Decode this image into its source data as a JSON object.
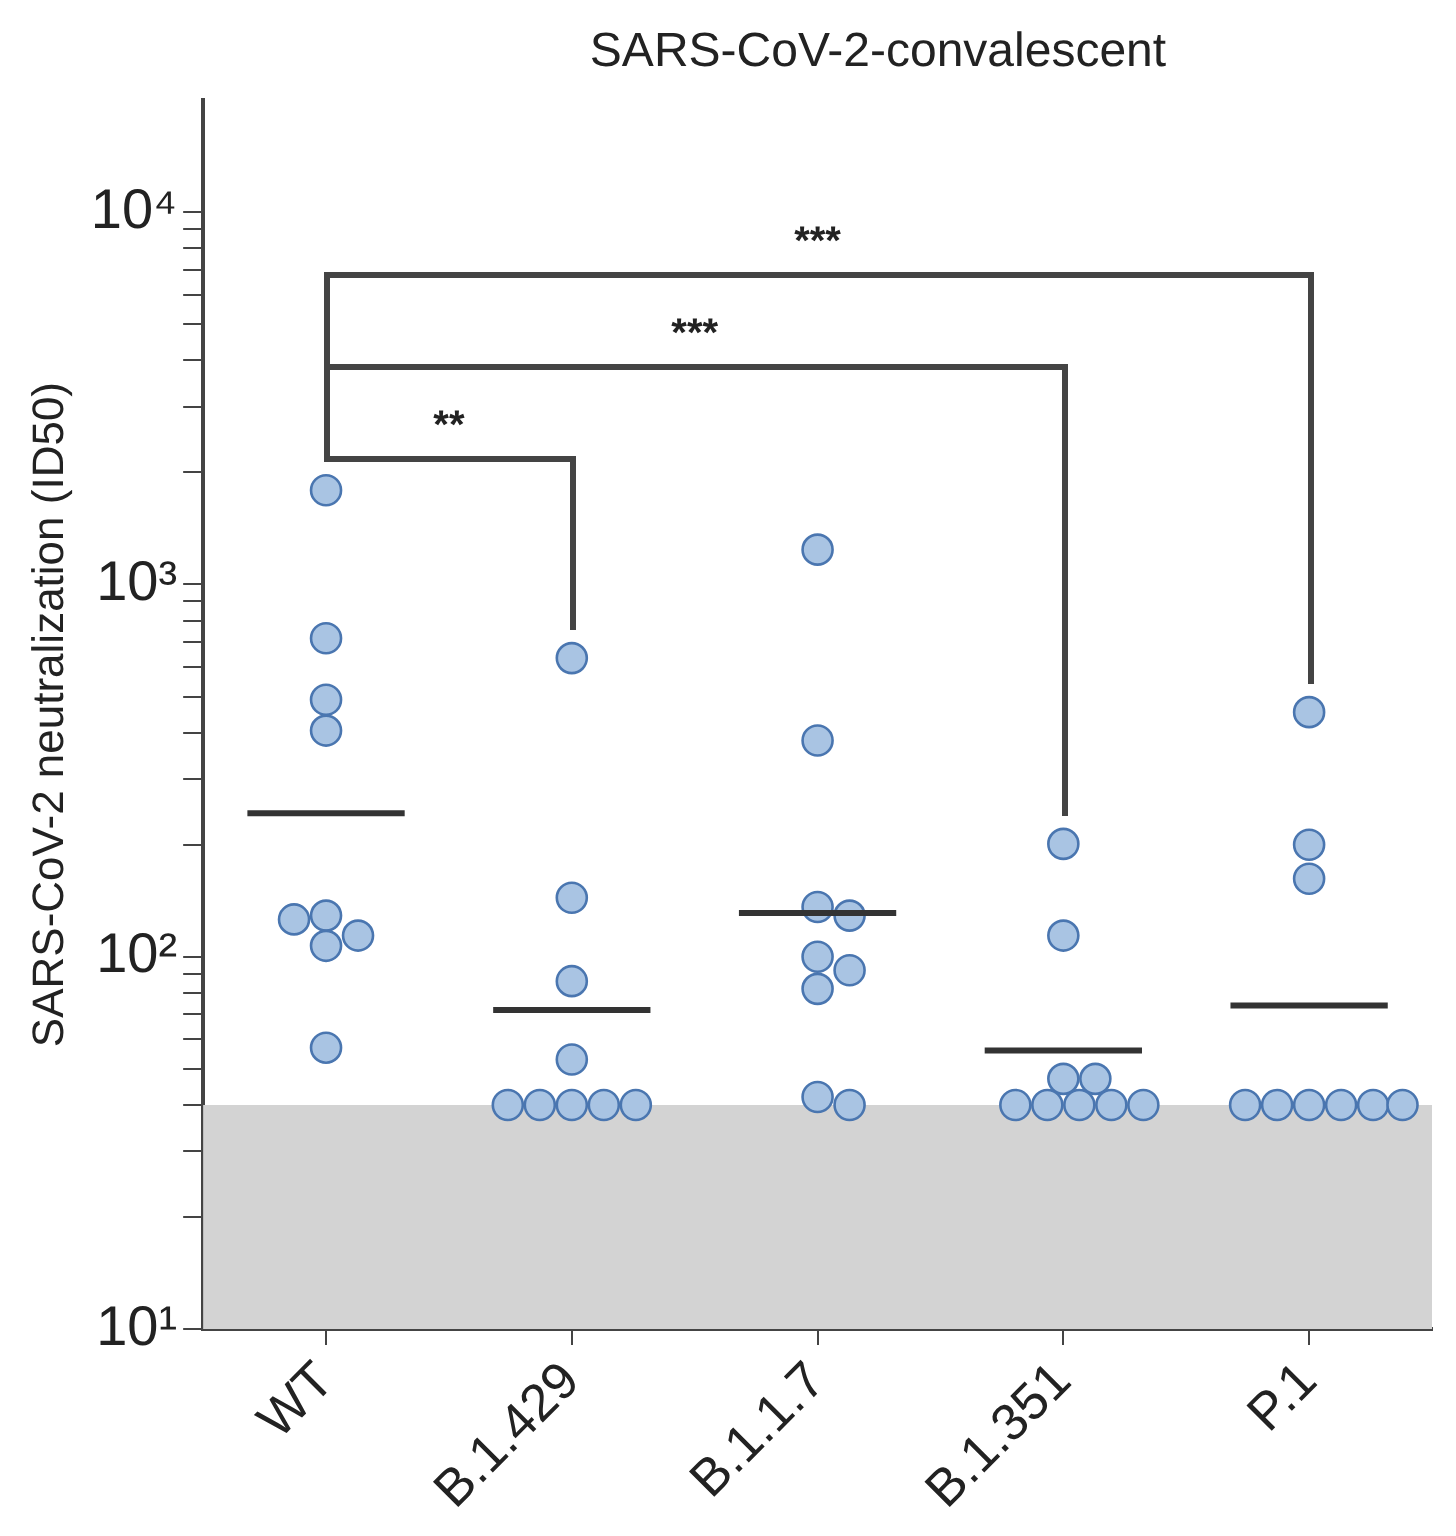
{
  "chart_data": {
    "type": "scatter",
    "title": "SARS-CoV-2-convalescent",
    "ylabel": "SARS-CoV-2 neutralization (ID50)",
    "categories": [
      "WT",
      "B.1.429",
      "B.1.1.7",
      "B.1.351",
      "P.1"
    ],
    "series": [
      {
        "type": "scatter",
        "color": "#a9c4e3",
        "x": [
          "WT",
          "WT",
          "WT",
          "WT",
          "WT",
          "WT",
          "WT",
          "WT",
          "WT",
          "B.1.429",
          "B.1.429",
          "B.1.429",
          "B.1.429",
          "B.1.429",
          "B.1.429",
          "B.1.429",
          "B.1.429",
          "B.1.429",
          "B.1.1.7",
          "B.1.1.7",
          "B.1.1.7",
          "B.1.1.7",
          "B.1.1.7",
          "B.1.1.7",
          "B.1.1.7",
          "B.1.1.7",
          "B.1.1.7",
          "B.1.351",
          "B.1.351",
          "B.1.351",
          "B.1.351",
          "B.1.351",
          "B.1.351",
          "B.1.351",
          "B.1.351",
          "B.1.351",
          "P.1",
          "P.1",
          "P.1",
          "P.1",
          "P.1",
          "P.1",
          "P.1",
          "P.1",
          "P.1"
        ],
        "values": [
          1790,
          717,
          490,
          405,
          129,
          114,
          126,
          107,
          57,
          634,
          144,
          86,
          53,
          40,
          40,
          40,
          40,
          40,
          1240,
          381,
          136,
          129,
          100,
          92,
          82,
          42,
          40,
          201,
          114,
          47,
          47,
          40,
          40,
          40,
          40,
          40,
          454,
          200,
          162,
          40,
          40,
          40,
          40,
          40,
          40
        ]
      },
      {
        "type": "box",
        "color": "#333333",
        "boxes": [
          {
            "low": 243,
            "q1": 243,
            "median": 243,
            "q3": 243,
            "high": 243
          },
          {
            "low": 72,
            "q1": 72,
            "median": 72,
            "q3": 72,
            "high": 72
          },
          {
            "low": 131,
            "q1": 131,
            "median": 131,
            "q3": 131,
            "high": 131
          },
          {
            "low": 56,
            "q1": 56,
            "median": 56,
            "q3": 56,
            "high": 56
          },
          {
            "low": 74,
            "q1": 74,
            "median": 74,
            "q3": 74,
            "high": 74
          }
        ]
      }
    ],
    "log": "y",
    "ylim": [
      10,
      20000
    ],
    "yticks": [
      {
        "value": 10,
        "label": "10¹"
      },
      {
        "value": 20,
        "label": null
      },
      {
        "value": 30,
        "label": null
      },
      {
        "value": 40,
        "label": null
      },
      {
        "value": 50,
        "label": null
      },
      {
        "value": 60,
        "label": null
      },
      {
        "value": 70,
        "label": null
      },
      {
        "value": 80,
        "label": null
      },
      {
        "value": 90,
        "label": null
      },
      {
        "value": 100,
        "label": "10²"
      },
      {
        "value": 200,
        "label": null
      },
      {
        "value": 300,
        "label": null
      },
      {
        "value": 400,
        "label": null
      },
      {
        "value": 500,
        "label": null
      },
      {
        "value": 600,
        "label": null
      },
      {
        "value": 700,
        "label": null
      },
      {
        "value": 800,
        "label": null
      },
      {
        "value": 900,
        "label": null
      },
      {
        "value": 1000,
        "label": "10³"
      },
      {
        "value": 2000,
        "label": null
      },
      {
        "value": 3000,
        "label": null
      },
      {
        "value": 4000,
        "label": null
      },
      {
        "value": 5000,
        "label": null
      },
      {
        "value": 6000,
        "label": null
      },
      {
        "value": 7000,
        "label": null
      },
      {
        "value": 8000,
        "label": null
      },
      {
        "value": 9000,
        "label": null
      },
      {
        "value": 10000,
        "label": "10⁴"
      }
    ],
    "bands": [
      {
        "axis": "y",
        "from": 10,
        "to": 40,
        "color": "#d3d3d3"
      }
    ],
    "annotations": [
      "**",
      "***",
      "***"
    ],
    "grid": false,
    "legend": false,
    "marker": "circle"
  }
}
